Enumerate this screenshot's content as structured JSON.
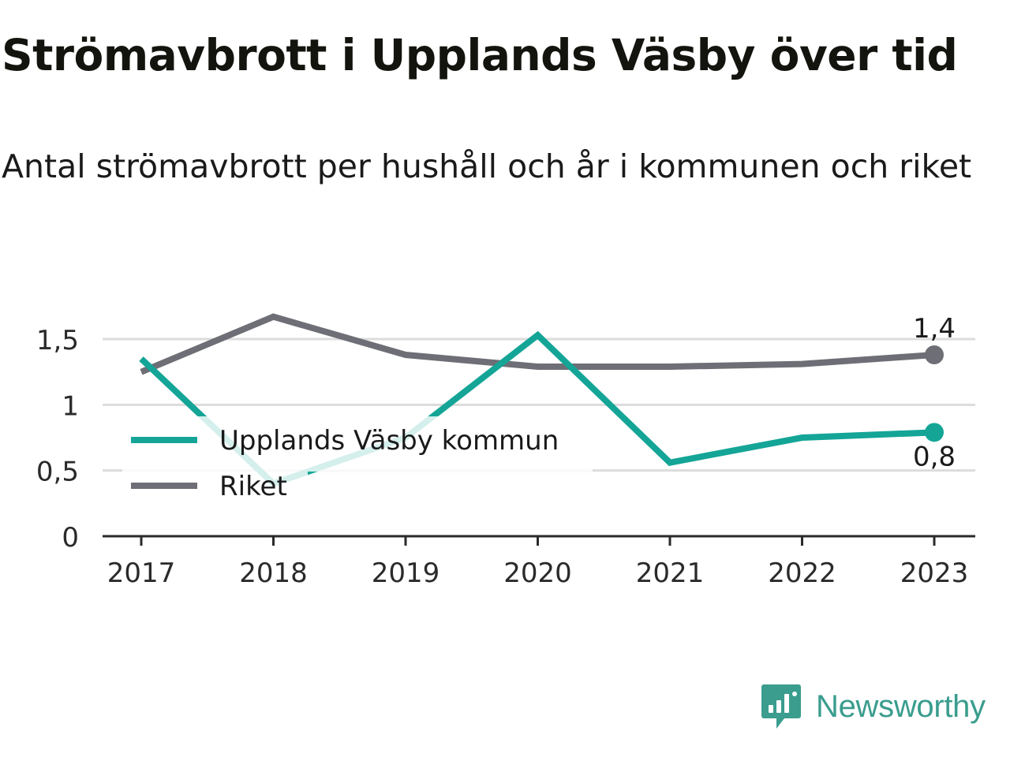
{
  "header": {
    "title": "Strömavbrott i Upplands Väsby över tid",
    "subtitle": "Antal strömavbrott per hushåll och år i kommunen och riket"
  },
  "chart_data": {
    "type": "line",
    "title": "Strömavbrott i Upplands Väsby över tid",
    "subtitle": "Antal strömavbrott per hushåll och år i kommunen och riket",
    "xlabel": "",
    "ylabel": "",
    "categories": [
      "2017",
      "2018",
      "2019",
      "2020",
      "2021",
      "2022",
      "2023"
    ],
    "ylim": [
      0,
      1.8
    ],
    "yticks": [
      0,
      0.5,
      1,
      1.5
    ],
    "ytick_labels": [
      "0",
      "0,5",
      "1",
      "1,5"
    ],
    "grid": "horizontal",
    "legend_position": "bottom-left",
    "series": [
      {
        "name": "Upplands Väsby kommun",
        "color": "#14a597",
        "values": [
          1.35,
          0.4,
          0.75,
          1.53,
          0.56,
          0.75,
          0.79
        ],
        "end_label": "0,8"
      },
      {
        "name": "Riket",
        "color": "#6e6e76",
        "values": [
          1.25,
          1.67,
          1.38,
          1.29,
          1.29,
          1.31,
          1.38
        ],
        "end_label": "1,4"
      }
    ]
  },
  "brand": {
    "name": "Newsworthy",
    "icon": "newsworthy-logo-icon",
    "color": "#3a9d8e"
  }
}
